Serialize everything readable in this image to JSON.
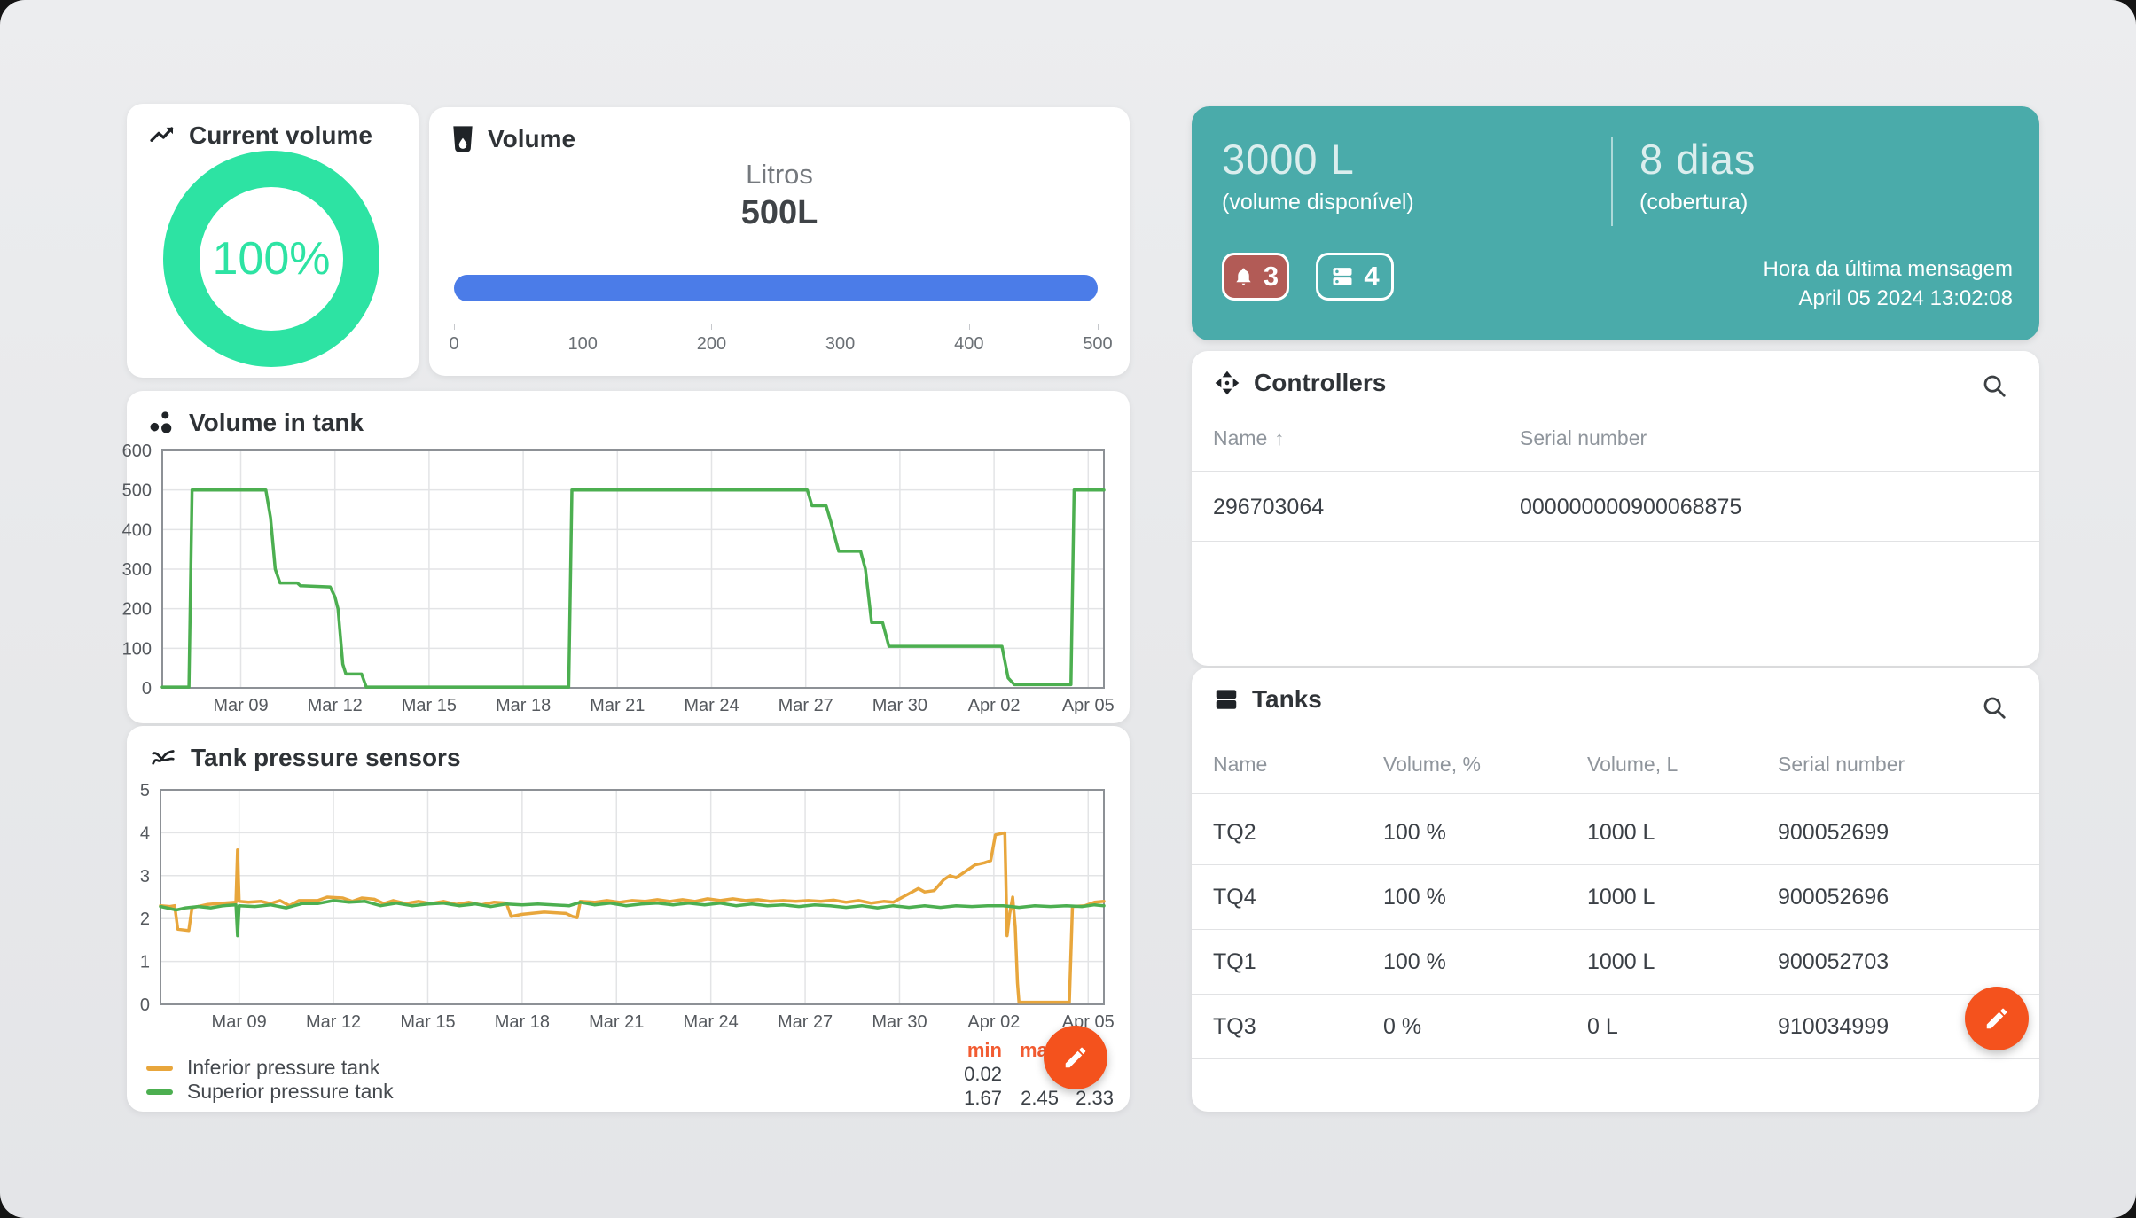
{
  "cards": {
    "current_volume": {
      "title": "Current volume",
      "value_label": "100%"
    },
    "volume": {
      "title": "Volume",
      "unit_label": "Litros",
      "value_label": "500L"
    },
    "volume_in_tank": {
      "title": "Volume in tank"
    },
    "pressure": {
      "title": "Tank pressure sensors",
      "legend": [
        {
          "label": "Inferior pressure tank",
          "color": "#e8a63c"
        },
        {
          "label": "Superior pressure tank",
          "color": "#4caf50"
        }
      ],
      "stats": {
        "headers": [
          "min",
          "max",
          ""
        ],
        "rows": [
          [
            "0.02",
            "",
            ""
          ],
          [
            "1.67",
            "2.45",
            "2.33"
          ]
        ]
      }
    }
  },
  "summary": {
    "volume_value": "3000 L",
    "volume_caption": "(volume disponível)",
    "coverage_value": "8 dias",
    "coverage_caption": "(cobertura)",
    "alerts_count": "3",
    "devices_count": "4",
    "last_message_label": "Hora da última mensagem",
    "last_message_time": "April 05 2024 13:02:08"
  },
  "controllers": {
    "title": "Controllers",
    "columns": [
      "Name",
      "Serial number"
    ],
    "sort_arrow": "↑",
    "rows": [
      [
        "296703064",
        "000000000900068875"
      ]
    ]
  },
  "tanks": {
    "title": "Tanks",
    "columns": [
      "Name",
      "Volume, %",
      "Volume, L",
      "Serial number"
    ],
    "rows": [
      [
        "TQ2",
        "100 %",
        "1000 L",
        "900052699"
      ],
      [
        "TQ4",
        "100 %",
        "1000 L",
        "900052696"
      ],
      [
        "TQ1",
        "100 %",
        "1000 L",
        "900052703"
      ],
      [
        "TQ3",
        "0 %",
        "0 L",
        "910034999"
      ]
    ]
  },
  "colors": {
    "mint": "#2de3a3",
    "bar_blue": "#4b7ce8",
    "teal": "#4aabaa",
    "alert_badge": "#b25b56",
    "fab_orange": "#f4521d",
    "chart_green": "#4caf50",
    "chart_orange": "#e8a63c",
    "stat_header": "#f25b31"
  },
  "chart_data": [
    {
      "id": "gauge",
      "type": "donut",
      "title": "Current volume",
      "value_percent": 100,
      "color": "#2de3a3",
      "size": 244,
      "stroke": 41
    },
    {
      "id": "volume_bar",
      "type": "progress",
      "title": "Volume",
      "value": 500,
      "max": 500,
      "unit": "Litros",
      "ticks": [
        0,
        100,
        200,
        300,
        400,
        500
      ],
      "color": "#4b7ce8"
    },
    {
      "id": "tank_volume",
      "type": "line",
      "title": "Volume in tank",
      "xlim": [
        0,
        30
      ],
      "ylim": [
        0,
        600
      ],
      "yticks": [
        0,
        100,
        200,
        300,
        400,
        500,
        600
      ],
      "x_tick_pos": [
        2.5,
        5.5,
        8.5,
        11.5,
        14.5,
        17.5,
        20.5,
        23.5,
        26.5,
        29.5
      ],
      "x_ticks": [
        "Mar 09",
        "Mar 12",
        "Mar 15",
        "Mar 18",
        "Mar 21",
        "Mar 24",
        "Mar 27",
        "Mar 30",
        "Apr 02",
        "Apr 05"
      ],
      "plot": [
        40,
        67,
        1062,
        268
      ],
      "series": [
        {
          "name": "Volume in tank",
          "color": "#4caf50",
          "points": [
            [
              0,
              2
            ],
            [
              0.85,
              2
            ],
            [
              0.95,
              500
            ],
            [
              3.3,
              500
            ],
            [
              3.45,
              430
            ],
            [
              3.6,
              300
            ],
            [
              3.75,
              265
            ],
            [
              4.3,
              265
            ],
            [
              4.4,
              258
            ],
            [
              5.35,
              255
            ],
            [
              5.5,
              230
            ],
            [
              5.6,
              200
            ],
            [
              5.75,
              60
            ],
            [
              5.85,
              35
            ],
            [
              6.35,
              35
            ],
            [
              6.5,
              2
            ],
            [
              12.95,
              2
            ],
            [
              13.05,
              500
            ],
            [
              20.55,
              500
            ],
            [
              20.7,
              460
            ],
            [
              21.15,
              460
            ],
            [
              21.3,
              420
            ],
            [
              21.55,
              345
            ],
            [
              22.25,
              345
            ],
            [
              22.4,
              300
            ],
            [
              22.6,
              165
            ],
            [
              22.95,
              165
            ],
            [
              23.15,
              105
            ],
            [
              26.75,
              105
            ],
            [
              26.95,
              25
            ],
            [
              27.15,
              8
            ],
            [
              28.95,
              8
            ],
            [
              29.05,
              500
            ],
            [
              30,
              500
            ]
          ]
        }
      ]
    },
    {
      "id": "pressure",
      "type": "line",
      "title": "Tank pressure sensors",
      "xlim": [
        0,
        30
      ],
      "ylim": [
        0,
        5
      ],
      "yticks": [
        0,
        1,
        2,
        3,
        4,
        5
      ],
      "x_tick_pos": [
        2.5,
        5.5,
        8.5,
        11.5,
        14.5,
        17.5,
        20.5,
        23.5,
        26.5,
        29.5
      ],
      "x_ticks": [
        "Mar 09",
        "Mar 12",
        "Mar 15",
        "Mar 18",
        "Mar 21",
        "Mar 24",
        "Mar 27",
        "Mar 30",
        "Apr 02",
        "Apr 05"
      ],
      "plot": [
        38,
        72,
        1064,
        242
      ],
      "series": [
        {
          "name": "Inferior pressure tank",
          "color": "#e8a63c",
          "min": 0.02,
          "points": [
            [
              0,
              2.3
            ],
            [
              0.3,
              2.28
            ],
            [
              0.45,
              2.3
            ],
            [
              0.55,
              1.75
            ],
            [
              0.9,
              1.72
            ],
            [
              1,
              2.25
            ],
            [
              1.5,
              2.33
            ],
            [
              2,
              2.36
            ],
            [
              2.4,
              2.38
            ],
            [
              2.45,
              3.6
            ],
            [
              2.5,
              2.4
            ],
            [
              2.8,
              2.38
            ],
            [
              3.2,
              2.4
            ],
            [
              3.5,
              2.35
            ],
            [
              3.8,
              2.42
            ],
            [
              4.1,
              2.3
            ],
            [
              4.4,
              2.42
            ],
            [
              5,
              2.42
            ],
            [
              5.3,
              2.5
            ],
            [
              5.8,
              2.48
            ],
            [
              6.1,
              2.4
            ],
            [
              6.4,
              2.48
            ],
            [
              6.8,
              2.45
            ],
            [
              7.1,
              2.35
            ],
            [
              7.4,
              2.42
            ],
            [
              7.8,
              2.35
            ],
            [
              8.2,
              2.4
            ],
            [
              8.6,
              2.35
            ],
            [
              9,
              2.4
            ],
            [
              9.4,
              2.33
            ],
            [
              9.8,
              2.38
            ],
            [
              10.2,
              2.32
            ],
            [
              10.6,
              2.38
            ],
            [
              11,
              2.36
            ],
            [
              11.15,
              2.05
            ],
            [
              11.5,
              2.1
            ],
            [
              12.2,
              2.15
            ],
            [
              12.9,
              2.12
            ],
            [
              13.1,
              2.05
            ],
            [
              13.25,
              2.02
            ],
            [
              13.35,
              2.4
            ],
            [
              13.8,
              2.38
            ],
            [
              14.2,
              2.42
            ],
            [
              14.6,
              2.38
            ],
            [
              15,
              2.42
            ],
            [
              15.4,
              2.4
            ],
            [
              15.8,
              2.44
            ],
            [
              16.2,
              2.4
            ],
            [
              16.6,
              2.44
            ],
            [
              17,
              2.4
            ],
            [
              17.4,
              2.46
            ],
            [
              17.8,
              2.42
            ],
            [
              18.2,
              2.46
            ],
            [
              18.6,
              2.42
            ],
            [
              19,
              2.44
            ],
            [
              19.4,
              2.4
            ],
            [
              19.8,
              2.42
            ],
            [
              20.2,
              2.4
            ],
            [
              20.6,
              2.42
            ],
            [
              21,
              2.4
            ],
            [
              21.4,
              2.43
            ],
            [
              21.8,
              2.38
            ],
            [
              22.2,
              2.42
            ],
            [
              22.6,
              2.36
            ],
            [
              23,
              2.4
            ],
            [
              23.3,
              2.38
            ],
            [
              23.6,
              2.5
            ],
            [
              23.9,
              2.62
            ],
            [
              24.1,
              2.7
            ],
            [
              24.3,
              2.62
            ],
            [
              24.6,
              2.65
            ],
            [
              24.9,
              2.9
            ],
            [
              25.1,
              3
            ],
            [
              25.3,
              2.95
            ],
            [
              25.6,
              3.1
            ],
            [
              25.9,
              3.25
            ],
            [
              26.2,
              3.3
            ],
            [
              26.4,
              3.35
            ],
            [
              26.55,
              3.95
            ],
            [
              26.85,
              4
            ],
            [
              26.92,
              1.6
            ],
            [
              27,
              2.1
            ],
            [
              27.1,
              2.5
            ],
            [
              27.18,
              1.8
            ],
            [
              27.25,
              0.5
            ],
            [
              27.3,
              0.05
            ],
            [
              28.9,
              0.05
            ],
            [
              29,
              2.28
            ],
            [
              29.4,
              2.3
            ],
            [
              29.7,
              2.38
            ],
            [
              30,
              2.4
            ]
          ]
        },
        {
          "name": "Superior pressure tank",
          "color": "#4caf50",
          "min": 1.67,
          "max": 2.45,
          "avg": 2.33,
          "points": [
            [
              0,
              2.28
            ],
            [
              0.5,
              2.2
            ],
            [
              0.8,
              2.25
            ],
            [
              1.2,
              2.28
            ],
            [
              1.6,
              2.25
            ],
            [
              2,
              2.3
            ],
            [
              2.4,
              2.32
            ],
            [
              2.45,
              1.6
            ],
            [
              2.5,
              2.3
            ],
            [
              3,
              2.28
            ],
            [
              3.5,
              2.32
            ],
            [
              4,
              2.25
            ],
            [
              4.5,
              2.35
            ],
            [
              5,
              2.35
            ],
            [
              5.5,
              2.42
            ],
            [
              6,
              2.38
            ],
            [
              6.5,
              2.4
            ],
            [
              7,
              2.3
            ],
            [
              7.5,
              2.36
            ],
            [
              8,
              2.3
            ],
            [
              8.5,
              2.34
            ],
            [
              9,
              2.36
            ],
            [
              9.5,
              2.3
            ],
            [
              10,
              2.34
            ],
            [
              10.5,
              2.28
            ],
            [
              11,
              2.34
            ],
            [
              11.5,
              2.32
            ],
            [
              12,
              2.34
            ],
            [
              12.5,
              2.32
            ],
            [
              13,
              2.3
            ],
            [
              13.35,
              2.38
            ],
            [
              13.8,
              2.32
            ],
            [
              14.3,
              2.36
            ],
            [
              14.8,
              2.3
            ],
            [
              15.3,
              2.34
            ],
            [
              15.8,
              2.36
            ],
            [
              16.3,
              2.32
            ],
            [
              16.8,
              2.36
            ],
            [
              17.3,
              2.32
            ],
            [
              17.8,
              2.36
            ],
            [
              18.3,
              2.3
            ],
            [
              18.8,
              2.34
            ],
            [
              19.3,
              2.3
            ],
            [
              19.8,
              2.32
            ],
            [
              20.3,
              2.28
            ],
            [
              20.8,
              2.32
            ],
            [
              21.3,
              2.3
            ],
            [
              21.8,
              2.26
            ],
            [
              22.3,
              2.3
            ],
            [
              22.8,
              2.25
            ],
            [
              23.3,
              2.3
            ],
            [
              23.8,
              2.26
            ],
            [
              24.3,
              2.3
            ],
            [
              24.8,
              2.26
            ],
            [
              25.3,
              2.3
            ],
            [
              25.8,
              2.28
            ],
            [
              26.3,
              2.3
            ],
            [
              26.8,
              2.3
            ],
            [
              27.3,
              2.26
            ],
            [
              27.8,
              2.3
            ],
            [
              28.3,
              2.28
            ],
            [
              28.8,
              2.3
            ],
            [
              29.3,
              2.28
            ],
            [
              29.7,
              2.32
            ],
            [
              30,
              2.3
            ]
          ]
        }
      ]
    }
  ]
}
